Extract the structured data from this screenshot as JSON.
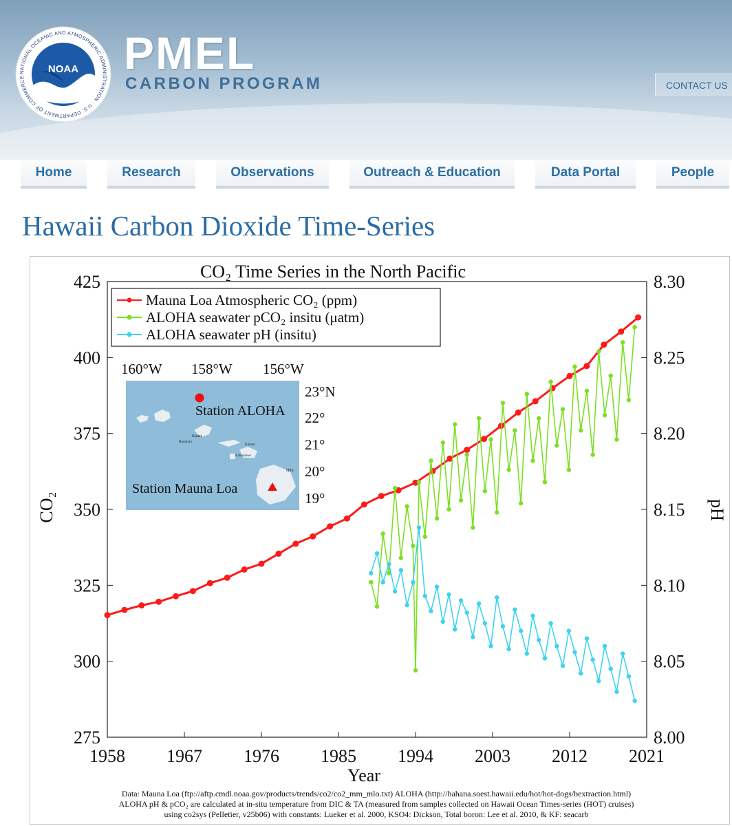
{
  "header": {
    "logo_text": "NOAA",
    "logo_ring_text": "NATIONAL OCEANIC AND ATMOSPHERIC ADMINISTRATION · U.S. DEPARTMENT OF COMMERCE",
    "brand_title": "PMEL",
    "brand_subtitle": "CARBON PROGRAM",
    "contact_label": "CONTACT US"
  },
  "nav": {
    "items": [
      {
        "label": "Home"
      },
      {
        "label": "Research"
      },
      {
        "label": "Observations"
      },
      {
        "label": "Outreach & Education"
      },
      {
        "label": "Data Portal"
      },
      {
        "label": "People"
      }
    ]
  },
  "page_title": "Hawaii Carbon Dioxide Time-Series",
  "colors": {
    "mauna_loa": "#ff1a1a",
    "aloha_pco2": "#7be021",
    "aloha_ph": "#3ed3f0",
    "map_water": "#8fbcd9",
    "link_blue": "#2c6fa3"
  },
  "figure": {
    "map": {
      "lon_labels": [
        "160°W",
        "158°W",
        "156°W"
      ],
      "lat_labels": [
        "23°N",
        "22°",
        "21°",
        "20°",
        "19°"
      ],
      "station_aloha": "Station ALOHA",
      "station_mauna_loa": "Station Mauna Loa",
      "island_labels": [
        "Kauai",
        "Honolulu",
        "Kaloko",
        "Kahoolawe",
        "Hilo"
      ]
    },
    "source_note": [
      "Data: Mauna Loa (ftp://aftp.cmdl.noaa.gov/products/trends/co2/co2_mm_mlo.txt)  ALOHA (http://hahana.soest.hawaii.edu/hot/hot-dogs/bextraction.html)",
      "ALOHA pH & pCO₂ are calculated at in-situ temperature from DIC & TA (measured from samples collected on Hawaii Ocean Times-series (HOT) cruises)",
      "using co2sys (Pelletier, v25b06) with constants: Lueker et al. 2000, KSO4: Dickson, Total boron: Lee et al. 2010, & KF: seacarb"
    ]
  },
  "chart_data": {
    "type": "line",
    "title": "CO₂ Time Series in the North Pacific",
    "xlabel": "Year",
    "ylabel": "CO₂",
    "y2label": "pH",
    "xlim": [
      1958,
      2021
    ],
    "ylim": [
      275,
      425
    ],
    "y2lim": [
      8.0,
      8.3
    ],
    "xticks": [
      "1958",
      "1967",
      "1976",
      "1985",
      "1994",
      "2003",
      "2012",
      "2021"
    ],
    "yticks": [
      "275",
      "300",
      "325",
      "350",
      "375",
      "400",
      "425"
    ],
    "y2ticks": [
      "8.00",
      "8.05",
      "8.10",
      "8.15",
      "8.20",
      "8.25",
      "8.30"
    ],
    "legend_position": "top-left",
    "series": [
      {
        "name": "Mauna Loa Atmospheric CO₂ (ppm)",
        "axis": "left",
        "color": "#ff1a1a",
        "x": [
          1958,
          1960,
          1962,
          1964,
          1966,
          1968,
          1970,
          1972,
          1974,
          1976,
          1978,
          1980,
          1982,
          1984,
          1986,
          1988,
          1990,
          1992,
          1994,
          1996,
          1998,
          2000,
          2002,
          2004,
          2006,
          2008,
          2010,
          2012,
          2014,
          2016,
          2018,
          2020
        ],
        "values": [
          315.2,
          316.9,
          318.4,
          319.6,
          321.4,
          323.1,
          325.7,
          327.5,
          330.2,
          332.1,
          335.4,
          338.7,
          341.1,
          344.4,
          347.0,
          351.6,
          354.4,
          356.3,
          358.8,
          362.6,
          366.7,
          369.6,
          373.2,
          377.5,
          381.9,
          385.6,
          389.9,
          393.9,
          397.2,
          404.2,
          408.5,
          413.2
        ]
      },
      {
        "name": "ALOHA seawater pCO₂ insitu (μatm)",
        "axis": "left",
        "color": "#7be021",
        "x": [
          1988.8,
          1989.5,
          1990.2,
          1990.9,
          1991.6,
          1992.3,
          1993.0,
          1993.7,
          1994.0,
          1994.4,
          1995.1,
          1995.8,
          1996.5,
          1997.2,
          1997.9,
          1998.6,
          1999.3,
          2000.0,
          2000.7,
          2001.4,
          2002.1,
          2002.8,
          2003.5,
          2004.2,
          2004.9,
          2005.6,
          2006.3,
          2007.0,
          2007.7,
          2008.4,
          2009.1,
          2009.8,
          2010.5,
          2011.2,
          2011.9,
          2012.6,
          2013.3,
          2014.0,
          2014.7,
          2015.4,
          2016.1,
          2016.8,
          2017.5,
          2018.2,
          2018.9,
          2019.6
        ],
        "values": [
          326,
          318,
          342,
          329,
          357,
          334,
          351,
          338,
          297,
          359,
          341,
          366,
          347,
          372,
          350,
          378,
          353,
          368,
          344,
          380,
          356,
          373,
          349,
          385,
          363,
          376,
          352,
          388,
          366,
          380,
          359,
          392,
          371,
          383,
          363,
          397,
          376,
          389,
          368,
          402,
          381,
          394,
          373,
          405,
          386,
          410
        ]
      },
      {
        "name": "ALOHA seawater pH (insitu)",
        "axis": "right",
        "color": "#3ed3f0",
        "x": [
          1988.8,
          1989.5,
          1990.2,
          1990.9,
          1991.6,
          1992.3,
          1993.0,
          1993.7,
          1994.4,
          1995.1,
          1995.8,
          1996.5,
          1997.2,
          1997.9,
          1998.6,
          1999.3,
          2000.0,
          2000.7,
          2001.4,
          2002.1,
          2002.8,
          2003.5,
          2004.2,
          2004.9,
          2005.6,
          2006.3,
          2007.0,
          2007.7,
          2008.4,
          2009.1,
          2009.8,
          2010.5,
          2011.2,
          2011.9,
          2012.6,
          2013.3,
          2014.0,
          2014.7,
          2015.4,
          2016.1,
          2016.8,
          2017.5,
          2018.2,
          2018.9,
          2019.6
        ],
        "values": [
          8.108,
          8.121,
          8.102,
          8.114,
          8.096,
          8.11,
          8.087,
          8.102,
          8.138,
          8.093,
          8.083,
          8.099,
          8.076,
          8.094,
          8.071,
          8.09,
          8.082,
          8.066,
          8.088,
          8.075,
          8.06,
          8.092,
          8.073,
          8.058,
          8.084,
          8.07,
          8.055,
          8.08,
          8.064,
          8.052,
          8.075,
          8.06,
          8.047,
          8.07,
          8.056,
          8.042,
          8.065,
          8.051,
          8.037,
          8.06,
          8.045,
          8.03,
          8.055,
          8.04,
          8.024
        ]
      }
    ]
  }
}
